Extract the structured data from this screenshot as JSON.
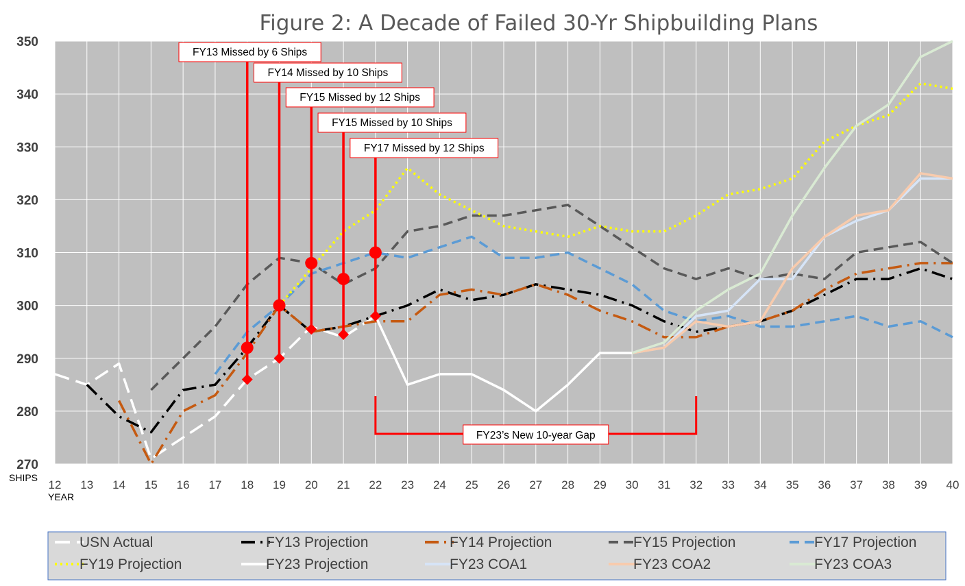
{
  "chart_data": {
    "type": "line",
    "title": "Figure 2: A Decade of Failed 30-Yr Shipbuilding Plans",
    "ylabel": "SHIPS",
    "xlabel": "YEAR",
    "ylim": [
      270,
      350
    ],
    "xlim": [
      12,
      40
    ],
    "yticks": [
      270,
      280,
      290,
      300,
      310,
      320,
      330,
      340,
      350
    ],
    "xticks": [
      12,
      13,
      14,
      15,
      16,
      17,
      18,
      19,
      20,
      21,
      22,
      23,
      24,
      25,
      26,
      27,
      28,
      29,
      30,
      31,
      32,
      33,
      34,
      35,
      36,
      37,
      38,
      39,
      40
    ],
    "grid": true,
    "legend_position": "bottom",
    "plot_background": "#bfbfbf",
    "gridline_color": "#ffffff",
    "series": [
      {
        "name": "USN Actual",
        "color": "#ffffff",
        "dash": "long-dash",
        "x": [
          12,
          13,
          14,
          15,
          16,
          17,
          18,
          19,
          20,
          21,
          22
        ],
        "y": [
          287,
          285,
          289,
          271,
          275,
          279,
          286,
          290,
          296,
          294,
          298
        ]
      },
      {
        "name": "FY13 Projection",
        "color": "#000000",
        "dash": "dash-dot",
        "x": [
          13,
          14,
          15,
          16,
          17,
          18,
          19,
          20,
          21,
          22,
          23,
          24,
          25,
          26,
          27,
          28,
          29,
          30,
          31,
          32,
          33,
          34,
          35,
          36,
          37,
          38,
          39,
          40
        ],
        "y": [
          285,
          279,
          276,
          284,
          285,
          292,
          300,
          295,
          296,
          298,
          300,
          303,
          301,
          302,
          304,
          303,
          302,
          300,
          297,
          295,
          296,
          297,
          299,
          302,
          305,
          305,
          307,
          305
        ]
      },
      {
        "name": "FY14 Projection",
        "color": "#c55a11",
        "dash": "dash-dot",
        "x": [
          14,
          15,
          16,
          17,
          18,
          19,
          20,
          21,
          22,
          23,
          24,
          25,
          26,
          27,
          28,
          29,
          30,
          31,
          32,
          33,
          34,
          35,
          36,
          37,
          38,
          39,
          40
        ],
        "y": [
          282,
          270,
          280,
          283,
          291,
          300,
          295,
          296,
          297,
          297,
          302,
          303,
          302,
          304,
          302,
          299,
          297,
          294,
          294,
          296,
          297,
          299,
          303,
          306,
          307,
          308,
          308
        ]
      },
      {
        "name": "FY15 Projection",
        "color": "#595959",
        "dash": "dash",
        "x": [
          15,
          16,
          17,
          18,
          19,
          20,
          21,
          22,
          23,
          24,
          25,
          26,
          27,
          28,
          29,
          30,
          31,
          32,
          33,
          34,
          35,
          36,
          37,
          38,
          39,
          40
        ],
        "y": [
          284,
          290,
          296,
          304,
          309,
          308,
          304,
          307,
          314,
          315,
          317,
          317,
          318,
          319,
          315,
          311,
          307,
          305,
          307,
          305,
          306,
          305,
          310,
          311,
          312,
          308
        ]
      },
      {
        "name": "FY17 Projection",
        "color": "#5b9bd5",
        "dash": "dash",
        "x": [
          17,
          18,
          19,
          20,
          21,
          22,
          23,
          24,
          25,
          26,
          27,
          28,
          29,
          30,
          31,
          32,
          33,
          34,
          35,
          36,
          37,
          38,
          39,
          40
        ],
        "y": [
          287,
          295,
          300,
          306,
          308,
          310,
          309,
          311,
          313,
          309,
          309,
          310,
          307,
          304,
          299,
          297,
          298,
          296,
          296,
          297,
          298,
          296,
          297,
          294
        ]
      },
      {
        "name": "FY19 Projection",
        "color": "#ffff00",
        "dash": "dot",
        "x": [
          19,
          20,
          21,
          22,
          23,
          24,
          25,
          26,
          27,
          28,
          29,
          30,
          31,
          32,
          33,
          34,
          35,
          36,
          37,
          38,
          39,
          40
        ],
        "y": [
          300,
          307,
          314,
          318,
          326,
          321,
          318,
          315,
          314,
          313,
          315,
          314,
          314,
          317,
          321,
          322,
          324,
          331,
          334,
          336,
          342,
          341
        ]
      },
      {
        "name": "FY23 Projection",
        "color": "#ffffff",
        "dash": "solid",
        "x": [
          22,
          23,
          24,
          25,
          26,
          27,
          28,
          29,
          30
        ],
        "y": [
          298,
          285,
          287,
          287,
          284,
          280,
          285,
          291,
          291
        ]
      },
      {
        "name": "FY23 COA1",
        "color": "#d6e4f7",
        "dash": "solid",
        "x": [
          30,
          31,
          32,
          33,
          34,
          35,
          36,
          37,
          38,
          39,
          40
        ],
        "y": [
          291,
          292,
          298,
          299,
          305,
          305,
          313,
          316,
          318,
          324,
          324
        ]
      },
      {
        "name": "FY23 COA2",
        "color": "#f8cbad",
        "dash": "solid",
        "x": [
          30,
          31,
          32,
          33,
          34,
          35,
          36,
          37,
          38,
          39,
          40
        ],
        "y": [
          291,
          292,
          297,
          296,
          297,
          307,
          313,
          317,
          318,
          325,
          324
        ]
      },
      {
        "name": "FY23 COA3",
        "color": "#d9ead3",
        "dash": "solid",
        "x": [
          30,
          31,
          32,
          33,
          34,
          35,
          36,
          37,
          38,
          39,
          40
        ],
        "y": [
          291,
          293,
          299,
          303,
          306,
          317,
          326,
          334,
          338,
          347,
          350
        ]
      }
    ],
    "annotations": [
      {
        "text": "FY13 Missed by 6 Ships",
        "x": 18,
        "y_planned": 292,
        "y_actual": 286
      },
      {
        "text": "FY14 Missed by 10 Ships",
        "x": 19,
        "y_planned": 300,
        "y_actual": 290
      },
      {
        "text": "FY15 Missed by 12 Ships",
        "x": 20,
        "y_planned": 308,
        "y_actual": 295.5
      },
      {
        "text": "FY15 Missed by 10 Ships",
        "x": 21,
        "y_planned": 305,
        "y_actual": 294.5
      },
      {
        "text": "FY17 Missed by 12 Ships",
        "x": 22,
        "y_planned": 310,
        "y_actual": 298
      }
    ],
    "gap_annotation": {
      "text": "FY23’s New 10-year Gap",
      "x_start": 22,
      "x_end": 32
    },
    "annotation_color": "#ff0000"
  }
}
